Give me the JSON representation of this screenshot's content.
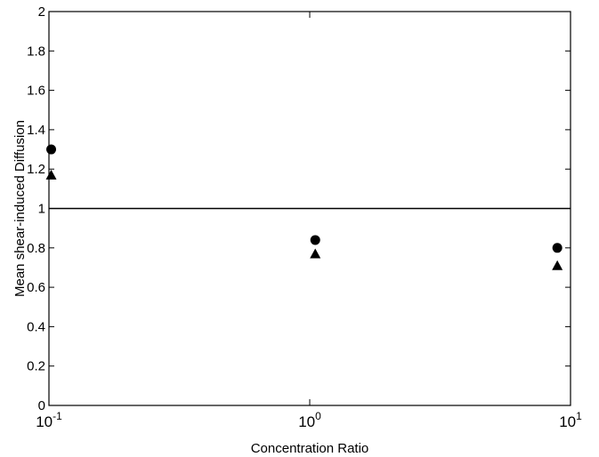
{
  "chart_data": {
    "type": "scatter",
    "x_label": "Concentration Ratio",
    "y_label": "Mean shear-induced Diffusion",
    "xscale": "log",
    "xlim": [
      0.1,
      10
    ],
    "xticks": [
      {
        "value": 0.1,
        "label": "10",
        "exponent": "-1"
      },
      {
        "value": 1,
        "label": "10",
        "exponent": "0"
      },
      {
        "value": 10,
        "label": "10",
        "exponent": "1"
      }
    ],
    "ylim": [
      0,
      2
    ],
    "yticks": [
      0,
      0.2,
      0.4,
      0.6,
      0.8,
      1,
      1.2,
      1.4,
      1.6,
      1.8,
      2
    ],
    "grid": false,
    "reference_line": 1,
    "series": [
      {
        "marker": "circle",
        "color": "#000000",
        "x": [
          0.102,
          1.05,
          8.9
        ],
        "values": [
          1.3,
          0.84,
          0.8
        ]
      },
      {
        "marker": "triangle",
        "color": "#000000",
        "x": [
          0.102,
          1.05,
          8.9
        ],
        "values": [
          1.17,
          0.77,
          0.71
        ]
      }
    ]
  }
}
